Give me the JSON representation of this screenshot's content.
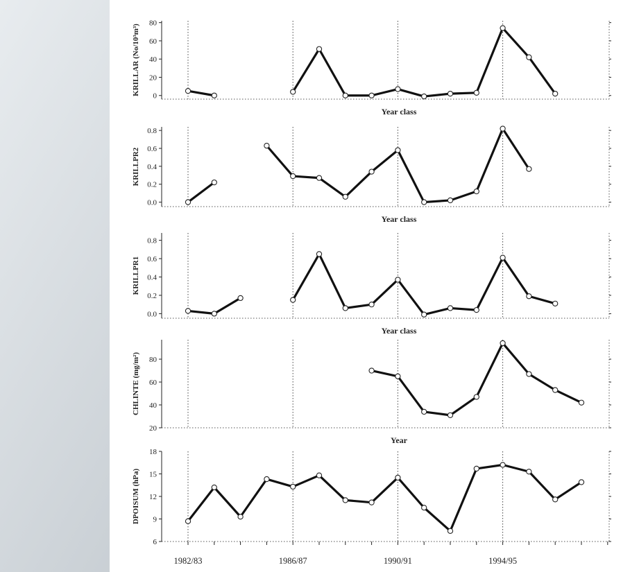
{
  "colors": {
    "background": "#ffffff",
    "line": "#111111",
    "marker_fill": "#ffffff"
  },
  "x_tick_labels": [
    "1982/83",
    "1986/87",
    "1990/91",
    "1994/95"
  ],
  "chart_data": [
    {
      "type": "line",
      "ylabel": "KRILLAR (No/10³m³)",
      "xlabel": "Year class",
      "yticks": [
        0,
        20,
        40,
        60,
        80
      ],
      "ylim": [
        -4,
        82
      ],
      "x": [
        1982,
        1983,
        1984,
        1985,
        1986,
        1987,
        1988,
        1989,
        1990,
        1991,
        1992,
        1993,
        1994,
        1995,
        1996,
        1997
      ],
      "values": [
        5,
        0,
        null,
        null,
        4,
        51,
        0,
        0,
        7,
        -1,
        2,
        3,
        74,
        42,
        2,
        null
      ]
    },
    {
      "type": "line",
      "ylabel": "KRILLPR2",
      "xlabel": "Year class",
      "yticks": [
        "0.0",
        "0.2",
        "0.4",
        "0.6",
        "0.8"
      ],
      "ylim": [
        -0.05,
        0.84
      ],
      "x": [
        1982,
        1983,
        1984,
        1985,
        1986,
        1987,
        1988,
        1989,
        1990,
        1991,
        1992,
        1993,
        1994,
        1995,
        1996,
        1997
      ],
      "values": [
        0.0,
        0.22,
        null,
        0.63,
        0.29,
        0.27,
        0.06,
        0.34,
        0.58,
        0.0,
        0.02,
        0.12,
        0.82,
        0.37,
        null,
        null
      ]
    },
    {
      "type": "line",
      "ylabel": "KRILLPR1",
      "xlabel": "Year class",
      "yticks": [
        "0.0",
        "0.2",
        "0.4",
        "0.6",
        "0.8"
      ],
      "ylim": [
        -0.05,
        0.88
      ],
      "x": [
        1982,
        1983,
        1984,
        1985,
        1986,
        1987,
        1988,
        1989,
        1990,
        1991,
        1992,
        1993,
        1994,
        1995,
        1996,
        1997
      ],
      "values": [
        0.03,
        0.0,
        0.17,
        null,
        0.15,
        0.65,
        0.06,
        0.1,
        0.37,
        -0.01,
        0.06,
        0.04,
        0.61,
        0.19,
        0.11,
        null
      ]
    },
    {
      "type": "line",
      "ylabel": "CHLINTE (mg/m²)",
      "xlabel": "Year",
      "yticks": [
        20,
        40,
        60,
        80
      ],
      "ylim": [
        20,
        97
      ],
      "x": [
        1982,
        1983,
        1984,
        1985,
        1986,
        1987,
        1988,
        1989,
        1990,
        1991,
        1992,
        1993,
        1994,
        1995,
        1996,
        1997
      ],
      "values": [
        null,
        null,
        null,
        null,
        null,
        null,
        null,
        70,
        65,
        34,
        31,
        47,
        94,
        67,
        53,
        42
      ]
    },
    {
      "type": "line",
      "ylabel": "DPOISUM (hPa)",
      "xlabel": "",
      "yticks": [
        6,
        9,
        12,
        15,
        18
      ],
      "ylim": [
        6,
        18
      ],
      "x": [
        1982,
        1983,
        1984,
        1985,
        1986,
        1987,
        1988,
        1989,
        1990,
        1991,
        1992,
        1993,
        1994,
        1995,
        1996,
        1997
      ],
      "values": [
        8.7,
        13.2,
        9.3,
        14.3,
        13.3,
        14.8,
        11.5,
        11.2,
        14.5,
        10.5,
        7.4,
        15.7,
        16.2,
        15.3,
        11.6,
        13.9
      ]
    }
  ]
}
